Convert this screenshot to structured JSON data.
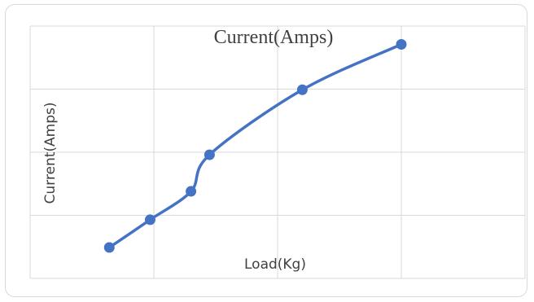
{
  "chart_data": {
    "type": "line",
    "title": "Current(Amps)",
    "xlabel": "Load(Kg)",
    "ylabel": "Current(Amps)",
    "xlim": [
      0,
      4
    ],
    "ylim": [
      0,
      4
    ],
    "grid": true,
    "smooth": true,
    "series": [
      {
        "x": [
          0.64,
          0.97,
          1.3,
          1.45,
          2.2,
          3.0
        ],
        "y": [
          0.49,
          0.93,
          1.38,
          1.96,
          2.99,
          3.71
        ],
        "color": "#4472C4"
      }
    ]
  }
}
